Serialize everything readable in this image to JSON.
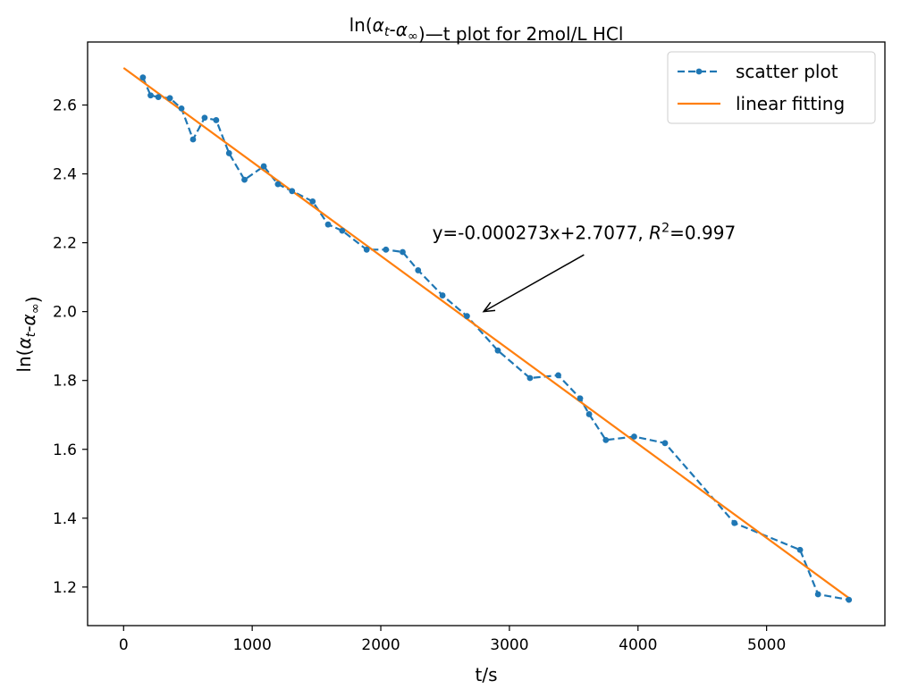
{
  "chart_data": {
    "type": "line",
    "title": "ln(α_t-α_∞)—t plot for 2mol/L HCl",
    "xlabel": "t/s",
    "ylabel": "ln(α_t-α_∞)",
    "xlim": [
      -280,
      5920
    ],
    "ylim": [
      1.088,
      2.783
    ],
    "xticks": [
      0,
      1000,
      2000,
      3000,
      4000,
      5000
    ],
    "yticks": [
      1.2,
      1.4,
      1.6,
      1.8,
      2.0,
      2.2,
      2.4,
      2.6
    ],
    "xtick_labels": [
      "0",
      "1000",
      "2000",
      "3000",
      "4000",
      "5000"
    ],
    "ytick_labels": [
      "1.2",
      "1.4",
      "1.6",
      "1.8",
      "2.0",
      "2.2",
      "2.4",
      "2.6"
    ],
    "grid": false,
    "legend_position": "top-right",
    "series": [
      {
        "name": "scatter plot",
        "style": "dashed-marker",
        "color": "#1f77b4",
        "x": [
          150,
          210,
          270,
          360,
          450,
          540,
          630,
          720,
          820,
          940,
          1090,
          1200,
          1310,
          1470,
          1590,
          1700,
          1890,
          2040,
          2170,
          2290,
          2480,
          2670,
          2910,
          3160,
          3380,
          3550,
          3620,
          3750,
          3970,
          4210,
          4750,
          5260,
          5400,
          5640
        ],
        "y": [
          2.68,
          2.628,
          2.623,
          2.62,
          2.59,
          2.5,
          2.563,
          2.556,
          2.46,
          2.383,
          2.422,
          2.37,
          2.35,
          2.32,
          2.253,
          2.235,
          2.18,
          2.18,
          2.173,
          2.12,
          2.047,
          1.987,
          1.887,
          1.807,
          1.815,
          1.748,
          1.702,
          1.627,
          1.637,
          1.618,
          1.386,
          1.308,
          1.179,
          1.163
        ]
      },
      {
        "name": "linear fitting",
        "style": "solid",
        "color": "#ff7f0e",
        "x": [
          0,
          5640
        ],
        "y": [
          2.7077,
          1.16798
        ]
      }
    ],
    "annotation": {
      "text_prefix": "y=-0.000273x+2.7077, ",
      "r_symbol": "R",
      "r_exponent": "2",
      "text_suffix": "=0.997",
      "text_pos": [
        2400,
        2.21
      ],
      "arrow_from": [
        3580,
        2.165
      ],
      "arrow_to": [
        2800,
        2.0
      ]
    }
  }
}
